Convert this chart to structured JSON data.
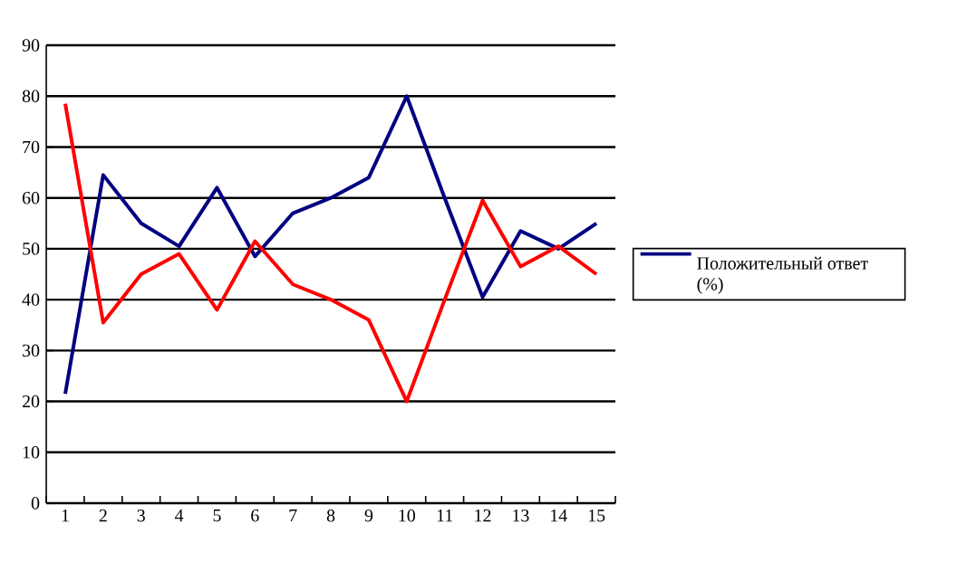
{
  "chart_data": {
    "type": "line",
    "categories": [
      "1",
      "2",
      "3",
      "4",
      "5",
      "6",
      "7",
      "8",
      "9",
      "10",
      "11",
      "12",
      "13",
      "14",
      "15"
    ],
    "series": [
      {
        "name": "Положительный ответ (%)",
        "color": "#000080",
        "values": [
          21.5,
          64.5,
          55,
          50.5,
          62,
          48.5,
          57,
          60,
          64,
          80,
          60,
          40.5,
          53.5,
          50,
          55
        ]
      },
      {
        "color": "#ff0000",
        "values": [
          78.5,
          35.5,
          45,
          49,
          38,
          51.5,
          43,
          40,
          36,
          20,
          40,
          59.5,
          46.5,
          50.5,
          45
        ]
      }
    ],
    "ylim": [
      0,
      90
    ],
    "yticks": [
      0,
      10,
      20,
      30,
      40,
      50,
      60,
      70,
      80,
      90
    ],
    "grid": "y",
    "legend": "right",
    "marker": "none",
    "line_style": "solid"
  }
}
